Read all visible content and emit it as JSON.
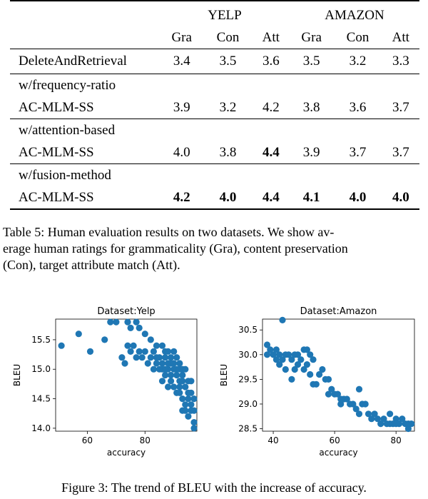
{
  "table": {
    "groups": [
      "YELP",
      "AMAZON"
    ],
    "metrics": [
      "Gra",
      "Con",
      "Att",
      "Gra",
      "Con",
      "Att"
    ],
    "rows": [
      {
        "label": [
          "DeleteAndRetrieval"
        ],
        "values": [
          "3.4",
          "3.5",
          "3.6",
          "3.5",
          "3.2",
          "3.3"
        ],
        "bold": [
          false,
          false,
          false,
          false,
          false,
          false
        ]
      },
      {
        "label": [
          "w/frequency-ratio",
          "AC-MLM-SS"
        ],
        "values": [
          "3.9",
          "3.2",
          "4.2",
          "3.8",
          "3.6",
          "3.7"
        ],
        "bold": [
          false,
          false,
          false,
          false,
          false,
          false
        ]
      },
      {
        "label": [
          "w/attention-based",
          "AC-MLM-SS"
        ],
        "values": [
          "4.0",
          "3.8",
          "4.4",
          "3.9",
          "3.7",
          "3.7"
        ],
        "bold": [
          false,
          false,
          true,
          false,
          false,
          false
        ]
      },
      {
        "label": [
          "w/fusion-method",
          "AC-MLM-SS"
        ],
        "values": [
          "4.2",
          "4.0",
          "4.4",
          "4.1",
          "4.0",
          "4.0"
        ],
        "bold": [
          true,
          true,
          true,
          true,
          true,
          true
        ]
      }
    ]
  },
  "caption5": [
    "Table 5:  Human evaluation results on two datasets.  We show av-",
    "erage human ratings for grammaticality (Gra), content preservation",
    "(Con), target attribute match (Att)."
  ],
  "caption3": "Figure 3: The trend of BLEU with the increase of accuracy.",
  "colors": {
    "marker": "#1f77b4"
  },
  "chart_data": [
    {
      "type": "scatter",
      "title": "Dataset:Yelp",
      "xlabel": "accuracy",
      "ylabel": "BLEU",
      "xlim": [
        49,
        98
      ],
      "ylim": [
        13.95,
        15.85
      ],
      "xticks": [
        60,
        80
      ],
      "yticks": [
        14.0,
        14.5,
        15.0,
        15.5
      ],
      "ytick_labels": [
        "14.0",
        "14.5",
        "15.0",
        "15.5"
      ],
      "points": [
        [
          51,
          15.4
        ],
        [
          57,
          15.6
        ],
        [
          61,
          15.3
        ],
        [
          66,
          15.5
        ],
        [
          68,
          15.8
        ],
        [
          70,
          15.8
        ],
        [
          74,
          15.8
        ],
        [
          75,
          15.7
        ],
        [
          77,
          15.8
        ],
        [
          78,
          15.7
        ],
        [
          80,
          15.6
        ],
        [
          82,
          15.5
        ],
        [
          74,
          15.4
        ],
        [
          75,
          15.3
        ],
        [
          76,
          15.4
        ],
        [
          78,
          15.3
        ],
        [
          72,
          15.2
        ],
        [
          73,
          15.1
        ],
        [
          79,
          15.2
        ],
        [
          80,
          15.3
        ],
        [
          83,
          15.3
        ],
        [
          84,
          15.4
        ],
        [
          86,
          15.4
        ],
        [
          87,
          15.3
        ],
        [
          85,
          15.0
        ],
        [
          82,
          15.2
        ],
        [
          83,
          15.0
        ],
        [
          84,
          15.1
        ],
        [
          86,
          15.1
        ],
        [
          88,
          15.3
        ],
        [
          89,
          15.1
        ],
        [
          90,
          15.3
        ],
        [
          91,
          15.2
        ],
        [
          87,
          14.9
        ],
        [
          88,
          15.0
        ],
        [
          89,
          14.8
        ],
        [
          90,
          15.0
        ],
        [
          91,
          14.9
        ],
        [
          92,
          15.0
        ],
        [
          93,
          14.9
        ],
        [
          92,
          14.8
        ],
        [
          90,
          14.7
        ],
        [
          91,
          14.6
        ],
        [
          92,
          14.7
        ],
        [
          93,
          14.8
        ],
        [
          94,
          14.7
        ],
        [
          95,
          14.6
        ],
        [
          94,
          14.4
        ],
        [
          95,
          14.5
        ],
        [
          96,
          14.4
        ],
        [
          97,
          14.5
        ],
        [
          93,
          14.3
        ],
        [
          94,
          14.3
        ],
        [
          96,
          14.3
        ],
        [
          97,
          14.3
        ],
        [
          95,
          14.2
        ],
        [
          97,
          14.1
        ],
        [
          97,
          14.0
        ],
        [
          86,
          14.8
        ],
        [
          88,
          14.7
        ],
        [
          89,
          14.9
        ],
        [
          85,
          15.2
        ],
        [
          87,
          15.2
        ],
        [
          88,
          15.1
        ],
        [
          90,
          15.1
        ],
        [
          91,
          15.0
        ],
        [
          92,
          14.6
        ],
        [
          93,
          14.5
        ],
        [
          96,
          14.6
        ],
        [
          89,
          15.2
        ],
        [
          84,
          15.2
        ],
        [
          86,
          15.0
        ],
        [
          87,
          15.0
        ],
        [
          93,
          15.0
        ],
        [
          92,
          15.1
        ],
        [
          95,
          14.8
        ],
        [
          94,
          15.0
        ],
        [
          96,
          14.8
        ],
        [
          77,
          15.2
        ],
        [
          81,
          15.1
        ]
      ]
    },
    {
      "type": "scatter",
      "title": "Dataset:Amazon",
      "xlabel": "accuracy",
      "ylabel": "BLEU",
      "xlim": [
        36.5,
        86
      ],
      "ylim": [
        28.45,
        30.72
      ],
      "xticks": [
        40,
        60,
        80
      ],
      "yticks": [
        28.5,
        29.0,
        29.5,
        30.0,
        30.5
      ],
      "ytick_labels": [
        "28.5",
        "29.0",
        "29.5",
        "30.0",
        "30.5"
      ],
      "points": [
        [
          43,
          30.7
        ],
        [
          38,
          30.2
        ],
        [
          38,
          30.0
        ],
        [
          39,
          30.1
        ],
        [
          40,
          30.0
        ],
        [
          41,
          29.9
        ],
        [
          41,
          30.1
        ],
        [
          42,
          29.8
        ],
        [
          42,
          30.0
        ],
        [
          43,
          29.9
        ],
        [
          44,
          30.0
        ],
        [
          44,
          29.7
        ],
        [
          45,
          30.0
        ],
        [
          46,
          29.9
        ],
        [
          47,
          30.0
        ],
        [
          47,
          29.7
        ],
        [
          48,
          29.8
        ],
        [
          48,
          30.0
        ],
        [
          49,
          29.9
        ],
        [
          50,
          30.1
        ],
        [
          51,
          30.1
        ],
        [
          52,
          30.0
        ],
        [
          50,
          29.7
        ],
        [
          51,
          29.8
        ],
        [
          52,
          29.6
        ],
        [
          53,
          29.9
        ],
        [
          53,
          29.4
        ],
        [
          54,
          29.4
        ],
        [
          55,
          29.6
        ],
        [
          56,
          29.7
        ],
        [
          57,
          29.5
        ],
        [
          58,
          29.5
        ],
        [
          59,
          29.3
        ],
        [
          60,
          29.2
        ],
        [
          61,
          29.2
        ],
        [
          62,
          29.0
        ],
        [
          63,
          29.1
        ],
        [
          64,
          29.1
        ],
        [
          65,
          29.0
        ],
        [
          66,
          29.0
        ],
        [
          67,
          28.9
        ],
        [
          68,
          29.3
        ],
        [
          68,
          28.8
        ],
        [
          69,
          29.0
        ],
        [
          70,
          29.0
        ],
        [
          71,
          28.8
        ],
        [
          72,
          28.7
        ],
        [
          73,
          28.8
        ],
        [
          74,
          28.7
        ],
        [
          75,
          28.6
        ],
        [
          76,
          28.7
        ],
        [
          77,
          28.6
        ],
        [
          78,
          28.6
        ],
        [
          78,
          28.8
        ],
        [
          79,
          28.6
        ],
        [
          80,
          28.7
        ],
        [
          81,
          28.6
        ],
        [
          82,
          28.7
        ],
        [
          83,
          28.6
        ],
        [
          84,
          28.5
        ],
        [
          85,
          28.6
        ],
        [
          84,
          28.6
        ],
        [
          80,
          28.6
        ],
        [
          46,
          29.5
        ],
        [
          58,
          29.2
        ],
        [
          62,
          29.1
        ]
      ]
    }
  ]
}
